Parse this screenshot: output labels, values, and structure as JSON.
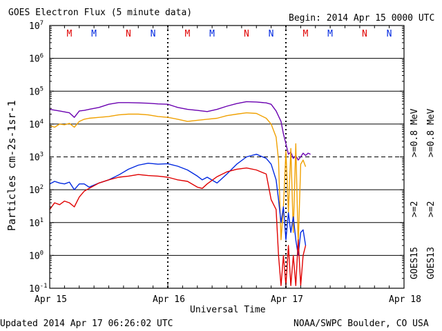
{
  "header": {
    "title": "GOES Electron Flux (5 minute data)",
    "begin": "Begin: 2014 Apr 15 0000 UTC"
  },
  "footer": {
    "updated": "Updated 2014 Apr 17 06:26:02 UTC",
    "credit": "NOAA/SWPC Boulder, CO USA"
  },
  "colors": {
    "goes15_high": "#6a00b0",
    "goes13_high": "#f0a000",
    "goes15_low": "#0028e0",
    "goes13_low": "#e00000",
    "noon_M": "#e00000",
    "noon_N_red": "#e00000",
    "noon_N_blue": "#0028e0",
    "noon_M_blue": "#0028e0"
  },
  "chart_data": {
    "type": "line",
    "title": "GOES Electron Flux (5 minute data)",
    "xlabel": "Universal Time",
    "ylabel": "Particles cm-2s-1sr-1",
    "yscale": "log",
    "ylim": [
      0.1,
      10000000
    ],
    "xlim": [
      "2014-04-15",
      "2014-04-18"
    ],
    "x_ticks": [
      "Apr 15",
      "Apr 16",
      "Apr 17",
      "Apr 18"
    ],
    "y_ticks": [
      "10-1",
      "100",
      "101",
      "102",
      "103",
      "104",
      "105",
      "106",
      "107"
    ],
    "threshold_line": 1000,
    "grid": "horizontal decades",
    "legend": {
      "placement": "right",
      "satellites": [
        "GOES15",
        "GOES13"
      ],
      "entries": [
        ">=2",
        ">=0.8 MeV",
        ">=2",
        ">=0.8 MeV"
      ]
    },
    "noon_midnight_markers": [
      {
        "label": "M",
        "color": "red",
        "hour": 4
      },
      {
        "label": "M",
        "color": "blue",
        "hour": 9
      },
      {
        "label": "N",
        "color": "red",
        "hour": 16
      },
      {
        "label": "N",
        "color": "blue",
        "hour": 21
      },
      {
        "label": "M",
        "color": "red",
        "hour": 28
      },
      {
        "label": "M",
        "color": "blue",
        "hour": 33
      },
      {
        "label": "N",
        "color": "red",
        "hour": 40
      },
      {
        "label": "N",
        "color": "blue",
        "hour": 45
      },
      {
        "label": "M",
        "color": "red",
        "hour": 52
      },
      {
        "label": "M",
        "color": "blue",
        "hour": 57
      },
      {
        "label": "N",
        "color": "red",
        "hour": 64
      },
      {
        "label": "N",
        "color": "blue",
        "hour": 69
      }
    ],
    "series": [
      {
        "name": "GOES15 >=0.8 MeV",
        "x_hours": [
          0,
          2,
          4,
          5,
          6,
          7,
          8,
          10,
          12,
          14,
          16,
          18,
          20,
          22,
          24,
          26,
          28,
          30,
          32,
          34,
          36,
          38,
          40,
          42,
          44,
          45,
          46,
          47,
          47.5,
          48,
          48.5,
          49,
          49.5,
          50,
          50.5,
          51,
          51.5,
          52,
          52.5,
          53
        ],
        "values": [
          28000,
          25000,
          22000,
          16000,
          25000,
          26000,
          28000,
          32000,
          40000,
          45000,
          45000,
          44000,
          43000,
          41000,
          40000,
          32000,
          28000,
          26000,
          24000,
          28000,
          35000,
          42000,
          48000,
          47000,
          44000,
          40000,
          25000,
          12000,
          5000,
          2500,
          1200,
          1400,
          900,
          1100,
          800,
          1000,
          1300,
          1100,
          1300,
          1200
        ]
      },
      {
        "name": "GOES13 >=0.8 MeV",
        "x_hours": [
          0,
          1,
          2,
          3,
          4,
          5,
          6,
          7,
          8,
          10,
          12,
          14,
          16,
          18,
          20,
          22,
          24,
          26,
          28,
          30,
          32,
          34,
          36,
          38,
          40,
          42,
          44,
          45,
          46,
          46.5,
          47,
          47.5,
          48,
          48.5,
          49,
          49.5,
          50,
          50.5,
          51,
          51.5,
          52
        ],
        "values": [
          9000,
          8000,
          10000,
          9500,
          10500,
          8000,
          12000,
          14000,
          15000,
          16000,
          17000,
          19000,
          20000,
          20000,
          19000,
          17000,
          16000,
          14000,
          12000,
          13000,
          14000,
          15000,
          18000,
          20000,
          22000,
          21000,
          15000,
          10000,
          4000,
          800,
          3,
          30,
          1500,
          20,
          1800,
          5,
          2500,
          2,
          600,
          800,
          500
        ]
      },
      {
        "name": "GOES15 >=2 MeV",
        "x_hours": [
          0,
          1,
          2,
          3,
          4,
          5,
          6,
          7,
          8,
          10,
          12,
          14,
          16,
          18,
          20,
          22,
          24,
          26,
          28,
          30,
          31,
          32,
          34,
          36,
          38,
          40,
          42,
          44,
          45,
          46,
          46.5,
          47,
          47.5,
          48,
          48.5,
          49,
          49.5,
          50,
          50.5,
          51,
          51.5,
          52
        ],
        "values": [
          150,
          180,
          160,
          150,
          170,
          100,
          150,
          150,
          120,
          160,
          200,
          280,
          420,
          560,
          640,
          600,
          620,
          520,
          400,
          260,
          200,
          240,
          160,
          300,
          600,
          1000,
          1200,
          900,
          600,
          200,
          50,
          10,
          30,
          3,
          20,
          5,
          15,
          3,
          1,
          5,
          6,
          2
        ]
      },
      {
        "name": "GOES13 >=2 MeV",
        "x_hours": [
          0,
          1,
          2,
          3,
          4,
          5,
          6,
          7,
          8,
          10,
          12,
          14,
          16,
          18,
          20,
          22,
          24,
          26,
          28,
          30,
          31,
          32,
          34,
          36,
          38,
          40,
          42,
          44,
          45,
          46,
          46.5,
          47,
          47.5,
          48,
          48.5,
          49,
          49.5,
          50,
          50.5,
          51,
          51.5,
          52
        ],
        "values": [
          25,
          40,
          35,
          45,
          40,
          30,
          60,
          90,
          110,
          160,
          200,
          240,
          260,
          290,
          270,
          260,
          240,
          200,
          180,
          120,
          110,
          150,
          250,
          350,
          420,
          460,
          400,
          300,
          50,
          25,
          1,
          0.12,
          1,
          0.12,
          2,
          0.12,
          1,
          0.12,
          3,
          0.12,
          1,
          2
        ]
      }
    ]
  }
}
